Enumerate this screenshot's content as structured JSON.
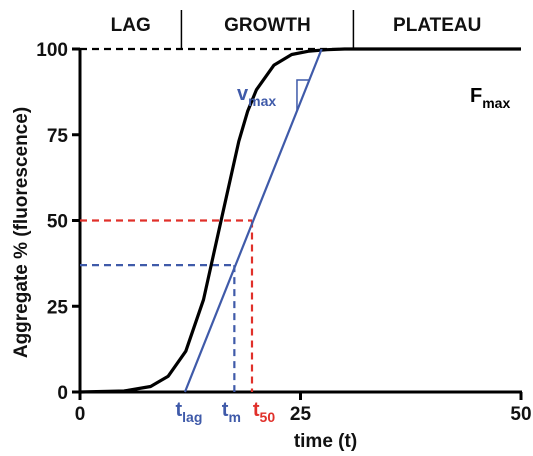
{
  "chart_data": {
    "type": "line",
    "title": "",
    "xlabel": "time (t)",
    "ylabel": "Aggregate % (fluorescence)",
    "xlim": [
      0,
      50
    ],
    "ylim": [
      0,
      100
    ],
    "xticks": [
      0,
      25,
      50
    ],
    "yticks": [
      0,
      25,
      50,
      75,
      100
    ],
    "phases": [
      {
        "label": "LAG",
        "x_end": 11.5
      },
      {
        "label": "GROWTH",
        "x_end": 31.0
      },
      {
        "label": "PLATEAU",
        "x_end": 50
      }
    ],
    "series": [
      {
        "values_x": [
          0,
          5,
          8,
          10,
          12,
          14,
          16,
          18,
          19,
          20,
          22,
          24,
          26,
          28,
          30,
          32,
          34,
          36,
          40,
          45,
          50
        ],
        "values_y": [
          0,
          0.3,
          1.6,
          4.6,
          11.9,
          26.9,
          50.0,
          73.1,
          81.8,
          88.1,
          95.3,
          98.4,
          99.4,
          99.8,
          100,
          100,
          100,
          100,
          100,
          100,
          100
        ],
        "color": "#000000"
      }
    ],
    "fmax": {
      "value": 100,
      "color": "#000000"
    },
    "tangent": {
      "x_from": 11.9,
      "x_to": 27.4,
      "y_from": 0,
      "y_to": 100,
      "color": "#3f5aa9"
    },
    "annotations": {
      "vmax": {
        "label": "v",
        "sub": "max",
        "color": "#3f5aa9"
      },
      "fmax_label": {
        "label": "F",
        "sub": "max",
        "color": "#000000"
      },
      "t50": {
        "x": 19.5,
        "y": 50,
        "label": "t",
        "sub": "50",
        "color": "#e0302a"
      },
      "tm": {
        "x": 17.5,
        "y": 37,
        "label": "t",
        "sub": "m",
        "color": "#3f5aa9"
      },
      "tlag": {
        "x": 11.9,
        "label": "t",
        "sub": "lag",
        "color": "#3f5aa9"
      }
    }
  }
}
